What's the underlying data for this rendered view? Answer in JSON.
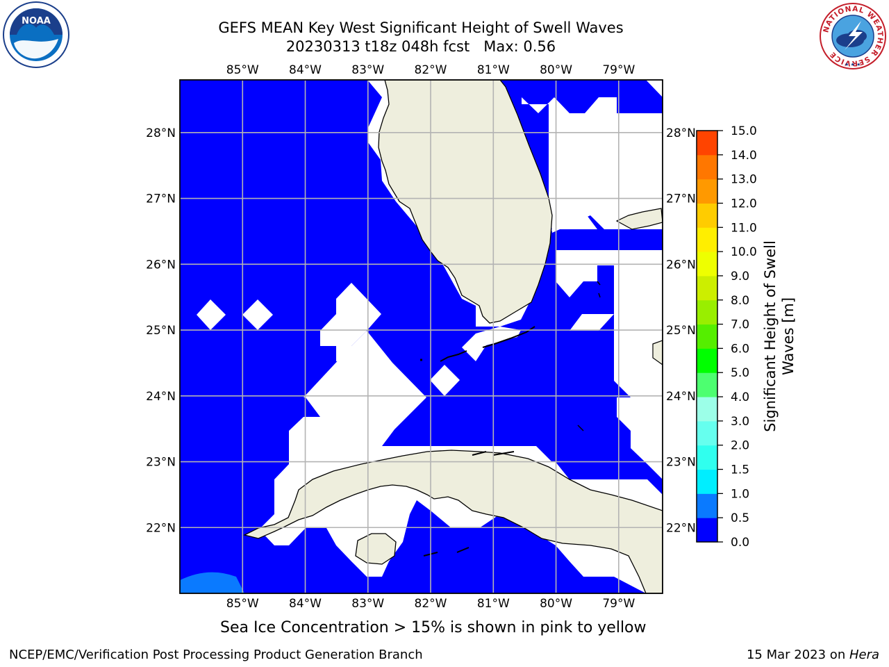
{
  "header": {
    "title_line1": "GEFS MEAN Key West Significant Height of Swell Waves",
    "title_line2": "20230313 t18z 048h fcst   Max: 0.56"
  },
  "map": {
    "lon_ticks": [
      "85°W",
      "84°W",
      "83°W",
      "82°W",
      "81°W",
      "80°W",
      "79°W"
    ],
    "lat_ticks": [
      "28°N",
      "27°N",
      "26°N",
      "25°N",
      "24°N",
      "23°N",
      "22°N"
    ],
    "extent": {
      "lon_min": -86.0,
      "lon_max": -78.3,
      "lat_min": 21.0,
      "lat_max": 28.8
    },
    "colors": {
      "ocean_low": "#0000ff",
      "ocean_mid": "#0a7aff",
      "land": "#eeeedd",
      "masked": "#ffffff",
      "grid": "#b3b3b3"
    }
  },
  "colorbar": {
    "label_line1": "Significant Height of Swell",
    "label_line2": "Waves [m]",
    "levels": [
      "0.0",
      "0.5",
      "1.0",
      "1.5",
      "2.0",
      "3.0",
      "4.0",
      "5.0",
      "6.0",
      "7.0",
      "8.0",
      "9.0",
      "10.0",
      "11.0",
      "12.0",
      "13.0",
      "14.0",
      "15.0"
    ],
    "colors": [
      "#0000ff",
      "#0a7aff",
      "#00eeff",
      "#30ffee",
      "#66ffee",
      "#9cffe8",
      "#4dff70",
      "#00ff00",
      "#55ee00",
      "#99ee00",
      "#ccee00",
      "#eeff00",
      "#ffee00",
      "#ffcc00",
      "#ff9900",
      "#ff7700",
      "#ff4400",
      "#ff0000"
    ]
  },
  "note": "Sea Ice Concentration > 15% is shown in pink to yellow",
  "footer": {
    "left": "NCEP/EMC/Verification Post Processing Product Generation Branch",
    "date": "15 Mar 2023 on ",
    "machine": "Hera"
  },
  "logos": {
    "noaa_text": "NOAA",
    "nws_text": "NATIONAL WEATHER SERVICE"
  }
}
